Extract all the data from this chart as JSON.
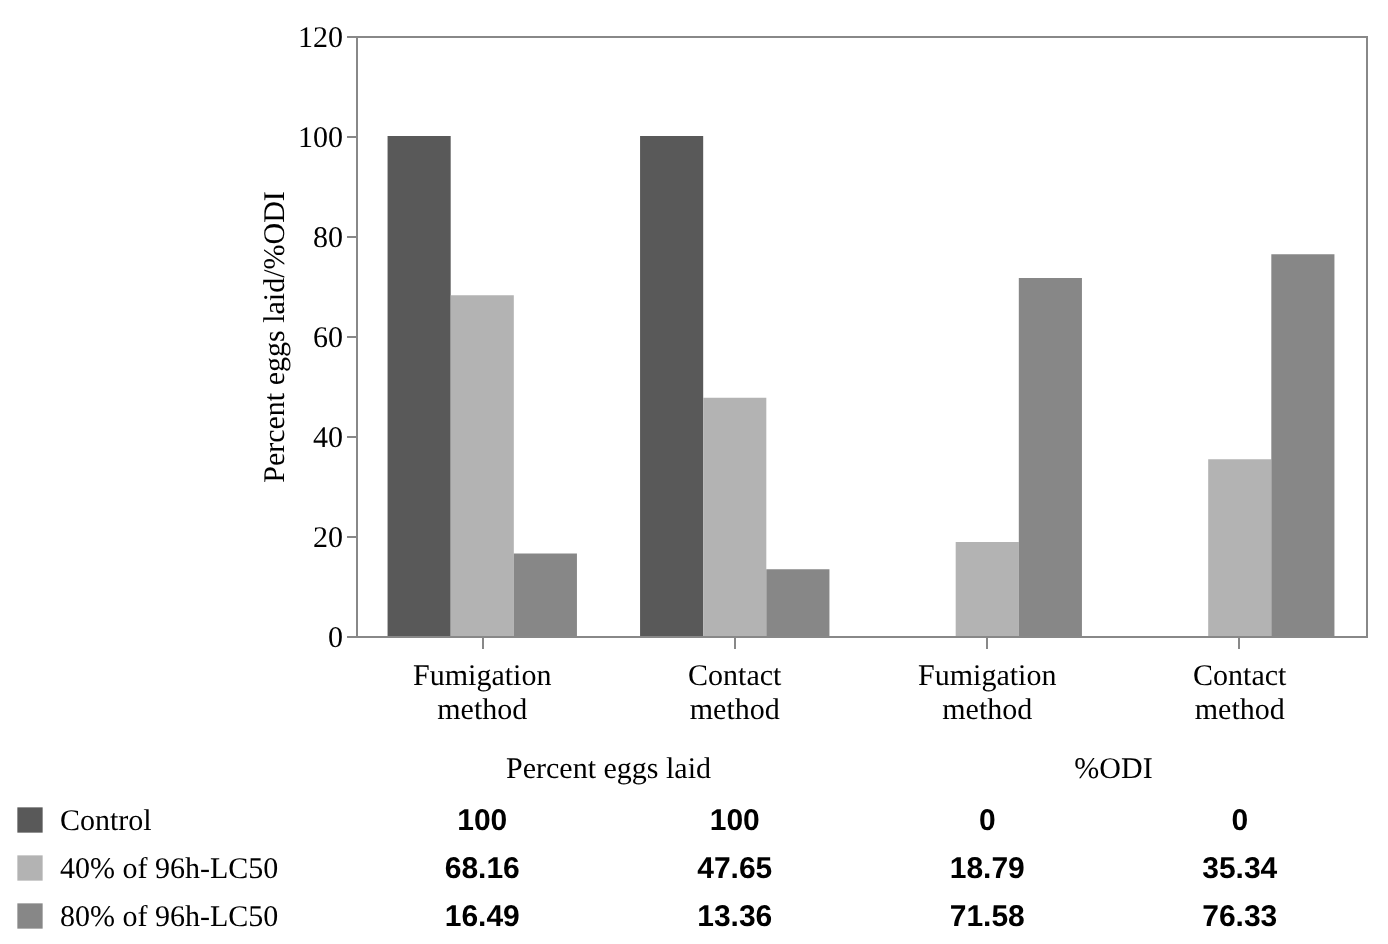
{
  "chart_data": {
    "type": "bar",
    "ylabel": "Percent eggs laid/%ODI",
    "categories": [
      "Fumigation method",
      "Contact method",
      "Fumigation method",
      "Contact method"
    ],
    "series": [
      {
        "name": "Control",
        "color": "#595959",
        "values": [
          100,
          100,
          0,
          0
        ]
      },
      {
        "name": "40% of 96h-LC50",
        "color": "#b3b3b3",
        "values": [
          68.16,
          47.65,
          18.79,
          35.34
        ]
      },
      {
        "name": "80% of 96h-LC50",
        "color": "#878787",
        "values": [
          16.49,
          13.36,
          71.58,
          76.33
        ]
      }
    ],
    "annotations": [
      "Percent eggs laid",
      "%ODI"
    ],
    "ylim": [
      0,
      120
    ],
    "yticks": [
      0,
      20,
      40,
      60,
      80,
      100,
      120
    ],
    "grid": false,
    "legend": "bottom",
    "data_labels": true
  }
}
